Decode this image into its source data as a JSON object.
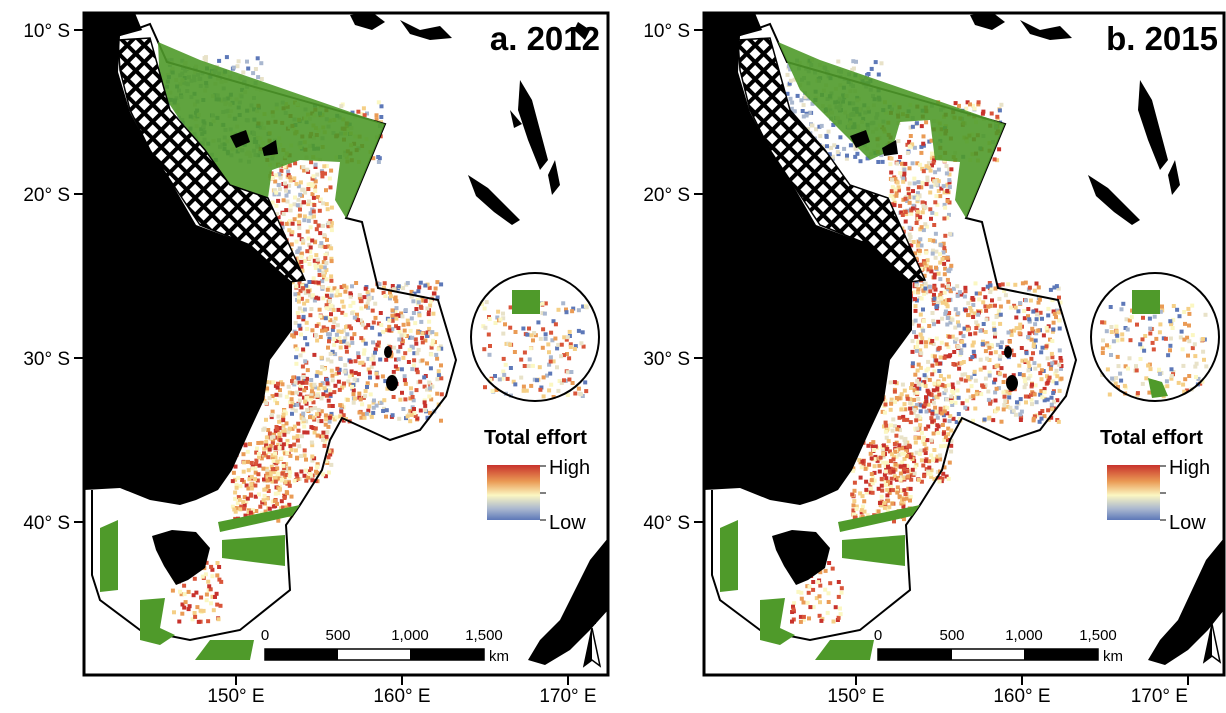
{
  "colors": {
    "land": "#000000",
    "marine_reserve": "#4f9a2a",
    "effort_high": "#c8322c",
    "effort_mid": "#fbf7c2",
    "effort_low": "#5d78b8",
    "frame": "#000000"
  },
  "icons": [
    "north-arrow-icon",
    "hatched-closure-pattern"
  ],
  "panels": [
    {
      "title": "a. 2012",
      "y_ticks": [
        "10° S",
        "20° S",
        "30° S",
        "40° S"
      ],
      "x_ticks": [
        "150° E",
        "160° E",
        "170° E"
      ],
      "legend": {
        "title": "Total effort",
        "high": "High",
        "low": "Low"
      },
      "scalebar": {
        "labels": [
          "0",
          "500",
          "1,000",
          "1,500"
        ],
        "unit": "km"
      },
      "north": "N"
    },
    {
      "title": "b. 2015",
      "y_ticks": [
        "10° S",
        "20° S",
        "30° S",
        "40° S"
      ],
      "x_ticks": [
        "150° E",
        "160° E",
        "170° E"
      ],
      "legend": {
        "title": "Total effort",
        "high": "High",
        "low": "Low"
      },
      "scalebar": {
        "labels": [
          "0",
          "500",
          "1,000",
          "1,500"
        ],
        "unit": "km"
      },
      "north": "N"
    }
  ]
}
